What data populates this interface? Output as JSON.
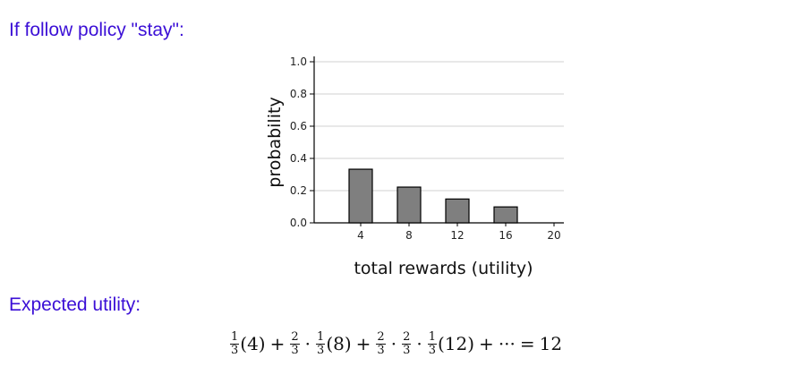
{
  "heading_policy": "If follow policy \"stay\":",
  "heading_expected": "Expected utility:",
  "colors": {
    "heading": "#3b0fd6",
    "bar_fill": "#7f7f7f",
    "bar_stroke": "#000000",
    "grid": "#d0d0d0"
  },
  "chart_data": {
    "type": "bar",
    "categories": [
      "4",
      "8",
      "12",
      "16",
      "20"
    ],
    "values": [
      0.333,
      0.222,
      0.148,
      0.099,
      0
    ],
    "xlabel": "total rewards (utility)",
    "ylabel": "probability",
    "ylim": [
      0,
      1.0
    ],
    "yticks": [
      "0.0",
      "0.2",
      "0.4",
      "0.6",
      "0.8",
      "1.0"
    ],
    "grid": true
  },
  "formula": {
    "segments": [
      {
        "type": "frac",
        "num": "1",
        "den": "3"
      },
      {
        "type": "text",
        "text": "(4)"
      },
      {
        "type": "op",
        "text": "+"
      },
      {
        "type": "frac",
        "num": "2",
        "den": "3"
      },
      {
        "type": "dot",
        "text": "·"
      },
      {
        "type": "frac",
        "num": "1",
        "den": "3"
      },
      {
        "type": "text",
        "text": "(8)"
      },
      {
        "type": "op",
        "text": "+"
      },
      {
        "type": "frac",
        "num": "2",
        "den": "3"
      },
      {
        "type": "dot",
        "text": "·"
      },
      {
        "type": "frac",
        "num": "2",
        "den": "3"
      },
      {
        "type": "dot",
        "text": "·"
      },
      {
        "type": "frac",
        "num": "1",
        "den": "3"
      },
      {
        "type": "text",
        "text": "(12)"
      },
      {
        "type": "op",
        "text": "+"
      },
      {
        "type": "text",
        "text": "···"
      },
      {
        "type": "op",
        "text": "="
      },
      {
        "type": "text",
        "text": "12"
      }
    ]
  }
}
